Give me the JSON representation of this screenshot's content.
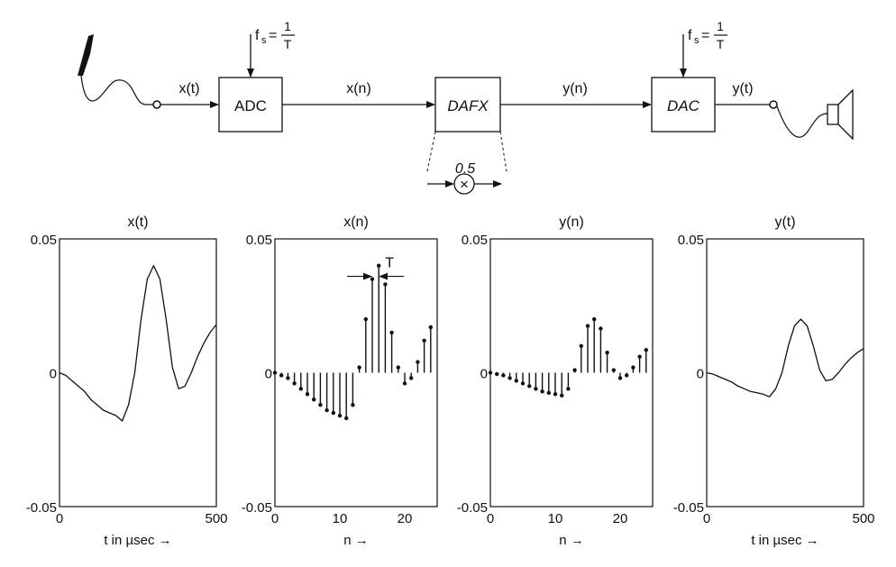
{
  "diagram": {
    "blocks": {
      "adc": "ADC",
      "dafx": "DAFX",
      "dac": "DAC"
    },
    "signals": {
      "x_t": "x(t)",
      "x_n": "x(n)",
      "y_n": "y(n)",
      "y_t": "y(t)"
    },
    "sampling": {
      "fs": "f",
      "fs_sub": "s",
      "eq": "=",
      "num": "1",
      "den": "T"
    },
    "gain": "0.5",
    "multiplier_symbol": "×",
    "icons": [
      "microphone-icon",
      "loudspeaker-icon",
      "multiplier-icon"
    ]
  },
  "chart_data": [
    {
      "type": "line",
      "title": "x(t)",
      "xlabel": "t in µsec →",
      "ylabel": "",
      "xlim": [
        0,
        500
      ],
      "ylim": [
        -0.05,
        0.05
      ],
      "x_ticks": [
        "0",
        "500"
      ],
      "y_ticks": [
        "0.05",
        "0",
        "-0.05"
      ],
      "x": [
        0,
        20,
        40,
        60,
        80,
        100,
        120,
        140,
        160,
        180,
        200,
        220,
        240,
        260,
        280,
        300,
        320,
        340,
        360,
        380,
        400,
        420,
        440,
        460,
        480,
        500
      ],
      "values": [
        0,
        -0.001,
        -0.003,
        -0.005,
        -0.007,
        -0.01,
        -0.012,
        -0.014,
        -0.015,
        -0.016,
        -0.018,
        -0.012,
        0,
        0.02,
        0.035,
        0.04,
        0.035,
        0.02,
        0.002,
        -0.006,
        -0.005,
        0,
        0.006,
        0.011,
        0.015,
        0.018
      ]
    },
    {
      "type": "stem",
      "title": "x(n)",
      "xlabel": "n →",
      "ylabel": "",
      "xlim": [
        0,
        25
      ],
      "ylim": [
        -0.05,
        0.05
      ],
      "x_ticks": [
        "0",
        "10",
        "20"
      ],
      "y_ticks": [
        "0.05",
        "0",
        "-0.05"
      ],
      "annotation": "T",
      "x": [
        0,
        1,
        2,
        3,
        4,
        5,
        6,
        7,
        8,
        9,
        10,
        11,
        12,
        13,
        14,
        15,
        16,
        17,
        18,
        19,
        20,
        21,
        22,
        23,
        24
      ],
      "values": [
        0,
        -0.001,
        -0.002,
        -0.004,
        -0.006,
        -0.008,
        -0.01,
        -0.012,
        -0.014,
        -0.015,
        -0.016,
        -0.017,
        -0.012,
        0.002,
        0.02,
        0.035,
        0.04,
        0.033,
        0.015,
        0.002,
        -0.004,
        -0.002,
        0.004,
        0.012,
        0.017
      ]
    },
    {
      "type": "stem",
      "title": "y(n)",
      "xlabel": "n →",
      "ylabel": "",
      "xlim": [
        0,
        25
      ],
      "ylim": [
        -0.05,
        0.05
      ],
      "x_ticks": [
        "0",
        "10",
        "20"
      ],
      "y_ticks": [
        "0.05",
        "0",
        "-0.05"
      ],
      "x": [
        0,
        1,
        2,
        3,
        4,
        5,
        6,
        7,
        8,
        9,
        10,
        11,
        12,
        13,
        14,
        15,
        16,
        17,
        18,
        19,
        20,
        21,
        22,
        23,
        24
      ],
      "values": [
        0,
        -0.0005,
        -0.001,
        -0.002,
        -0.003,
        -0.004,
        -0.005,
        -0.006,
        -0.007,
        -0.0075,
        -0.008,
        -0.0085,
        -0.006,
        0.001,
        0.01,
        0.0175,
        0.02,
        0.0165,
        0.0075,
        0.001,
        -0.002,
        -0.001,
        0.002,
        0.006,
        0.0085
      ]
    },
    {
      "type": "line",
      "title": "y(t)",
      "xlabel": "t in µsec →",
      "ylabel": "",
      "xlim": [
        0,
        500
      ],
      "ylim": [
        -0.05,
        0.05
      ],
      "x_ticks": [
        "0",
        "500"
      ],
      "y_ticks": [
        "0.05",
        "0",
        "-0.05"
      ],
      "x": [
        0,
        20,
        40,
        60,
        80,
        100,
        120,
        140,
        160,
        180,
        200,
        220,
        240,
        260,
        280,
        300,
        320,
        340,
        360,
        380,
        400,
        420,
        440,
        460,
        480,
        500
      ],
      "values": [
        0,
        -0.0005,
        -0.0015,
        -0.0025,
        -0.0035,
        -0.005,
        -0.006,
        -0.007,
        -0.0075,
        -0.008,
        -0.009,
        -0.006,
        0,
        0.01,
        0.0175,
        0.02,
        0.0175,
        0.01,
        0.001,
        -0.003,
        -0.0025,
        0,
        0.003,
        0.0055,
        0.0075,
        0.009
      ]
    }
  ]
}
